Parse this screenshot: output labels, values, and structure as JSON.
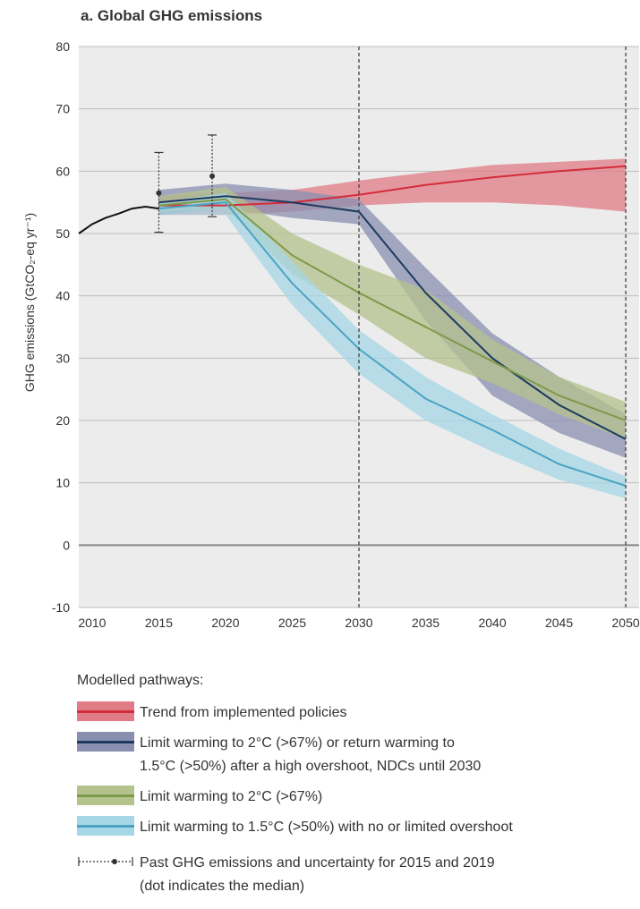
{
  "chart_data": {
    "type": "area",
    "title": "a. Global GHG emissions",
    "ylabel": "GHG emissions (GtCO₂-eq yr⁻¹)",
    "xlabel": "",
    "xlim": [
      2009,
      2051
    ],
    "ylim": [
      -10,
      80
    ],
    "yticks": [
      -10,
      0,
      10,
      20,
      30,
      40,
      50,
      60,
      70,
      80
    ],
    "xticks": [
      2010,
      2015,
      2020,
      2025,
      2030,
      2035,
      2040,
      2045,
      2050
    ],
    "reference_lines": [
      2030,
      2050
    ],
    "grid": true,
    "historical": {
      "x": [
        2009,
        2010,
        2011,
        2012,
        2013,
        2014,
        2015
      ],
      "y": [
        50,
        51.5,
        52.5,
        53.2,
        54,
        54.3,
        54
      ]
    },
    "uncertainty": [
      {
        "year": 2015,
        "median": 56.5,
        "low": 50.2,
        "high": 63
      },
      {
        "year": 2019,
        "median": 59.2,
        "low": 52.7,
        "high": 65.8
      }
    ],
    "series": [
      {
        "name": "Trend from implemented policies",
        "color": "#d42c3a",
        "band_color": "#e07c85",
        "x": [
          2015,
          2020,
          2025,
          2030,
          2035,
          2040,
          2045,
          2050
        ],
        "median": [
          54.5,
          54.5,
          55,
          56.2,
          57.8,
          59,
          60,
          60.8
        ],
        "low": [
          53,
          53,
          53.5,
          54.5,
          55,
          55,
          54.5,
          53.5
        ],
        "high": [
          56,
          56.5,
          57,
          58.5,
          59.8,
          61,
          61.5,
          62
        ]
      },
      {
        "name": "Limit warming to 2°C (>67%) or return warming to 1.5°C (>50%) after a high overshoot, NDCs until 2030",
        "color": "#1e3a60",
        "band_color": "#8a8fb0",
        "x": [
          2015,
          2020,
          2025,
          2030,
          2035,
          2040,
          2045,
          2050
        ],
        "median": [
          55,
          56,
          55,
          53.5,
          40.5,
          30,
          22.5,
          17
        ],
        "low": [
          53,
          54,
          52.5,
          51.5,
          36,
          24,
          18,
          14
        ],
        "high": [
          57,
          58,
          57,
          55.5,
          44.5,
          34,
          27,
          21
        ]
      },
      {
        "name": "Limit warming to 2°C (>67%)",
        "color": "#7e9a4a",
        "band_color": "#b4c28c",
        "x": [
          2015,
          2020,
          2025,
          2030,
          2035,
          2040,
          2045,
          2050
        ],
        "median": [
          54.5,
          55.5,
          46.5,
          40.5,
          35,
          29.5,
          24,
          20
        ],
        "low": [
          53.5,
          54,
          43.5,
          37,
          30,
          26,
          21,
          17
        ],
        "high": [
          56,
          57.5,
          50,
          45,
          41,
          33,
          27,
          23
        ]
      },
      {
        "name": "Limit warming to 1.5°C (>50%) with no or limited overshoot",
        "color": "#4ba3c4",
        "band_color": "#a6d7e6",
        "x": [
          2015,
          2020,
          2025,
          2030,
          2035,
          2040,
          2045,
          2050
        ],
        "median": [
          54,
          55,
          42,
          31.5,
          23.5,
          18.5,
          13,
          9.5
        ],
        "low": [
          53,
          53,
          38.5,
          27.5,
          20,
          15,
          10.5,
          7.5
        ],
        "high": [
          55,
          56.5,
          45.5,
          34.5,
          27,
          21,
          15.5,
          11
        ]
      }
    ]
  },
  "legend": {
    "heading": "Modelled pathways:",
    "items": [
      {
        "lines": [
          "Trend from implemented policies"
        ]
      },
      {
        "lines": [
          "Limit warming to 2°C (>67%) or return warming to",
          "1.5°C (>50%) after a high overshoot, NDCs until 2030"
        ]
      },
      {
        "lines": [
          "Limit warming to 2°C (>67%)"
        ]
      },
      {
        "lines": [
          "Limit warming to 1.5°C (>50%) with no or limited overshoot"
        ]
      }
    ],
    "past_lines": [
      "Past GHG emissions and uncertainty for 2015 and 2019",
      "(dot indicates the median)"
    ]
  }
}
